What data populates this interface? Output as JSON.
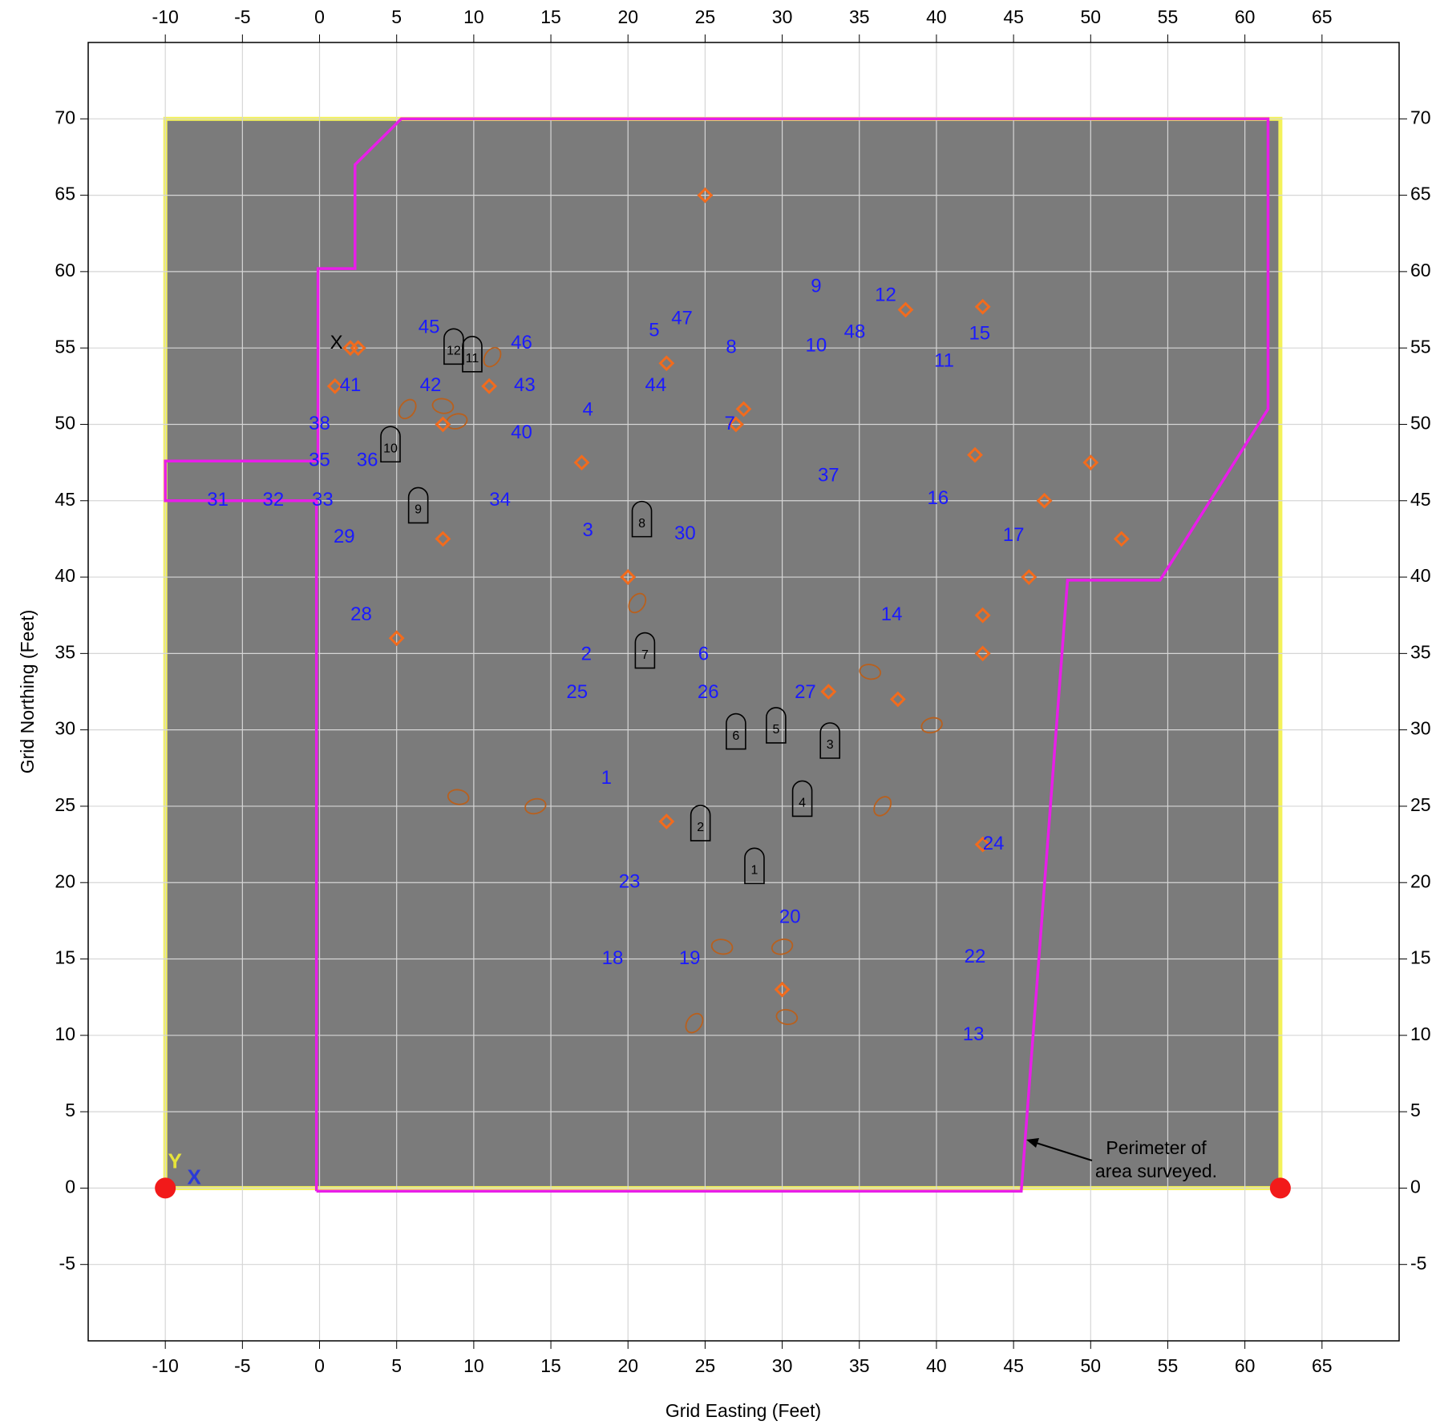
{
  "chart_data": {
    "type": "survey-map",
    "x_label": "Grid Easting (Feet)",
    "y_label": "Grid Northing (Feet)",
    "xlim": [
      -15,
      70
    ],
    "ylim": [
      -10,
      75
    ],
    "xticks": [
      -10,
      -5,
      0,
      5,
      10,
      15,
      20,
      25,
      30,
      35,
      40,
      45,
      50,
      55,
      60,
      65
    ],
    "yticks": [
      -5,
      0,
      5,
      10,
      15,
      20,
      25,
      30,
      35,
      40,
      45,
      50,
      55,
      60,
      65,
      70
    ],
    "grid": true,
    "image_extent": {
      "x": [
        -10,
        62.3
      ],
      "y": [
        0,
        70
      ]
    },
    "perimeter": {
      "color": "#e81ee8",
      "x": [
        -0.2,
        45.5,
        48.5,
        54.5,
        61.5,
        61.5,
        5.3,
        2.3,
        2.3,
        -0.1,
        -0.1,
        -10,
        -10,
        -0.2,
        -0.2
      ],
      "y": [
        -0.2,
        -0.2,
        39.8,
        39.8,
        51,
        70,
        70,
        67,
        60.2,
        60.2,
        47.6,
        47.6,
        45,
        45,
        -0.2
      ]
    },
    "annotation": {
      "lines": [
        "Perimeter of",
        "area surveyed."
      ]
    },
    "points": {
      "color": "#f26b1d",
      "x": [
        25,
        38,
        43,
        2,
        2.5,
        22.5,
        1,
        11,
        27.5,
        8,
        27,
        17,
        42.5,
        50,
        47,
        8,
        52,
        20,
        46,
        43,
        5,
        43,
        33,
        37.5,
        22.5,
        43,
        30
      ],
      "y": [
        65,
        57.5,
        57.7,
        55,
        55,
        54,
        52.5,
        52.5,
        51,
        50,
        50,
        47.5,
        48,
        47.5,
        45,
        42.5,
        42.5,
        40,
        40,
        37.5,
        36,
        35,
        32.5,
        32,
        24,
        22.5,
        13
      ]
    },
    "anomalies": {
      "color": "#b8601e",
      "x": [
        5.7,
        8.0,
        8.9,
        11.2,
        9.0,
        14.0,
        20.6,
        35.7,
        39.7,
        36.5,
        26.1,
        30.0,
        24.3,
        30.3
      ],
      "y": [
        51.0,
        51.2,
        50.2,
        54.4,
        25.6,
        25.0,
        38.3,
        33.8,
        30.3,
        25.0,
        15.8,
        15.8,
        10.8,
        11.2
      ]
    },
    "labels": {
      "color": "#1a1aff",
      "items": [
        {
          "text": "9",
          "x": 32.2,
          "y": 59.0
        },
        {
          "text": "12",
          "x": 36.7,
          "y": 58.4
        },
        {
          "text": "15",
          "x": 42.8,
          "y": 55.9
        },
        {
          "text": "11",
          "x": 40.5,
          "y": 54.1
        },
        {
          "text": "10",
          "x": 32.2,
          "y": 55.1
        },
        {
          "text": "48",
          "x": 34.7,
          "y": 56.0
        },
        {
          "text": "8",
          "x": 26.7,
          "y": 55.0
        },
        {
          "text": "47",
          "x": 23.5,
          "y": 56.9
        },
        {
          "text": "5",
          "x": 21.7,
          "y": 56.1
        },
        {
          "text": "45",
          "x": 7.1,
          "y": 56.3
        },
        {
          "text": "46",
          "x": 13.1,
          "y": 55.3
        },
        {
          "text": "41",
          "x": 2.0,
          "y": 52.5
        },
        {
          "text": "42",
          "x": 7.2,
          "y": 52.5
        },
        {
          "text": "43",
          "x": 13.3,
          "y": 52.5
        },
        {
          "text": "44",
          "x": 21.8,
          "y": 52.5
        },
        {
          "text": "4",
          "x": 17.4,
          "y": 50.9
        },
        {
          "text": "7",
          "x": 26.6,
          "y": 50.0
        },
        {
          "text": "38",
          "x": 0,
          "y": 50.0
        },
        {
          "text": "40",
          "x": 13.1,
          "y": 49.4
        },
        {
          "text": "35",
          "x": 0,
          "y": 47.6
        },
        {
          "text": "36",
          "x": 3.1,
          "y": 47.6
        },
        {
          "text": "37",
          "x": 33.0,
          "y": 46.6
        },
        {
          "text": "16",
          "x": 40.1,
          "y": 45.1
        },
        {
          "text": "31",
          "x": -6.6,
          "y": 45.0
        },
        {
          "text": "32",
          "x": -3.0,
          "y": 45.0
        },
        {
          "text": "33",
          "x": 0.2,
          "y": 45.0
        },
        {
          "text": "34",
          "x": 11.7,
          "y": 45.0
        },
        {
          "text": "29",
          "x": 1.6,
          "y": 42.6
        },
        {
          "text": "3",
          "x": 17.4,
          "y": 43.0
        },
        {
          "text": "30",
          "x": 23.7,
          "y": 42.8
        },
        {
          "text": "17",
          "x": 45.0,
          "y": 42.7
        },
        {
          "text": "28",
          "x": 2.7,
          "y": 37.5
        },
        {
          "text": "14",
          "x": 37.1,
          "y": 37.5
        },
        {
          "text": "2",
          "x": 17.3,
          "y": 34.9
        },
        {
          "text": "6",
          "x": 24.9,
          "y": 34.9
        },
        {
          "text": "25",
          "x": 16.7,
          "y": 32.4
        },
        {
          "text": "26",
          "x": 25.2,
          "y": 32.4
        },
        {
          "text": "27",
          "x": 31.5,
          "y": 32.4
        },
        {
          "text": "1",
          "x": 18.6,
          "y": 26.8
        },
        {
          "text": "24",
          "x": 43.7,
          "y": 22.5
        },
        {
          "text": "23",
          "x": 20.1,
          "y": 20.0
        },
        {
          "text": "20",
          "x": 30.5,
          "y": 17.7
        },
        {
          "text": "18",
          "x": 19.0,
          "y": 15.0
        },
        {
          "text": "19",
          "x": 24.0,
          "y": 15.0
        },
        {
          "text": "22",
          "x": 42.5,
          "y": 15.1
        },
        {
          "text": "13",
          "x": 42.4,
          "y": 10.0
        }
      ]
    },
    "markers": [
      {
        "text": "1",
        "x": 28.2,
        "y": 21.1
      },
      {
        "text": "2",
        "x": 24.7,
        "y": 23.9
      },
      {
        "text": "3",
        "x": 33.1,
        "y": 29.3
      },
      {
        "text": "4",
        "x": 31.3,
        "y": 25.5
      },
      {
        "text": "5",
        "x": 29.6,
        "y": 30.3
      },
      {
        "text": "6",
        "x": 27.0,
        "y": 29.9
      },
      {
        "text": "7",
        "x": 21.1,
        "y": 35.2
      },
      {
        "text": "8",
        "x": 20.9,
        "y": 43.8
      },
      {
        "text": "9",
        "x": 6.4,
        "y": 44.7
      },
      {
        "text": "10",
        "x": 4.6,
        "y": 48.7
      },
      {
        "text": "11",
        "x": 9.9,
        "y": 54.6
      },
      {
        "text": "12",
        "x": 8.7,
        "y": 55.1
      }
    ],
    "x_marker": {
      "text": "X",
      "x": 1.1,
      "y": 55.3
    },
    "origin_axes": {
      "y_text": "Y",
      "x_text": "X"
    }
  }
}
